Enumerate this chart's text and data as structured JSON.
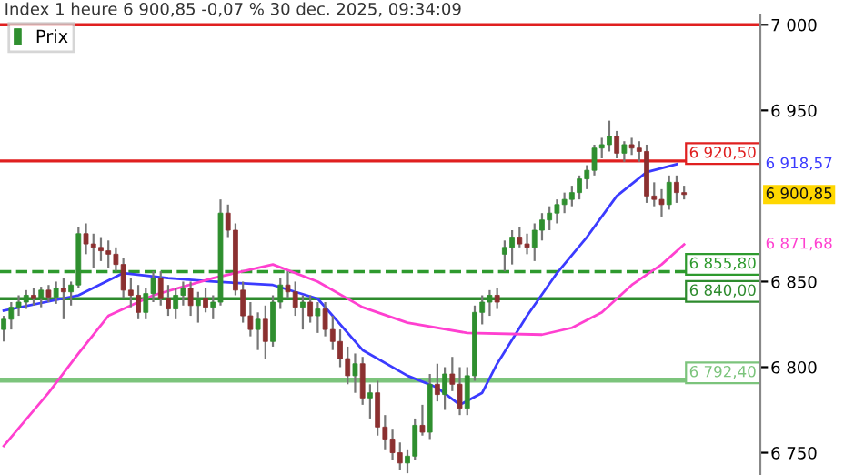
{
  "chart_data": {
    "type": "candlestick",
    "title": "Index 1 heure 6 900,85 -0,07 % 30 dec. 2025, 09:34:09",
    "categories": [
      null,
      null,
      null,
      null,
      null,
      null,
      null,
      null,
      null,
      null,
      null,
      null,
      null,
      null,
      null,
      null,
      null,
      null,
      null,
      null,
      null,
      null,
      null,
      null,
      null,
      null,
      null,
      null,
      null,
      null,
      null,
      null,
      null,
      null,
      null,
      null,
      null,
      null,
      null,
      null,
      null,
      null,
      null,
      null,
      null,
      null,
      null,
      null,
      null,
      null,
      null,
      null,
      null,
      null,
      null,
      null,
      null,
      null,
      null,
      null,
      null,
      null,
      null,
      null,
      null,
      null,
      null,
      null,
      null,
      null,
      null,
      null,
      null,
      null,
      null,
      null,
      null,
      null,
      null,
      null,
      null,
      null,
      null,
      null,
      null,
      null,
      null,
      null,
      null,
      null,
      null,
      null
    ],
    "grid": false,
    "ylim": [
      6737,
      7006
    ],
    "yticks": [
      {
        "value": 6750,
        "label": "6 750"
      },
      {
        "value": 6800,
        "label": "6 800"
      },
      {
        "value": 6850,
        "label": "6 850"
      },
      {
        "value": 6950,
        "label": "6 950"
      },
      {
        "value": 7000,
        "label": "7 000"
      }
    ],
    "legend": "top left",
    "series": [
      {
        "type": "candlestick",
        "name": "Prix",
        "color": "#2f8f2f",
        "ohlc": [
          [
            6822,
            6830,
            6815,
            6828
          ],
          [
            6828,
            6838,
            6822,
            6835
          ],
          [
            6835,
            6842,
            6830,
            6838
          ],
          [
            6838,
            6845,
            6834,
            6842
          ],
          [
            6842,
            6846,
            6836,
            6840
          ],
          [
            6840,
            6847,
            6835,
            6845
          ],
          [
            6845,
            6848,
            6838,
            6841
          ],
          [
            6841,
            6850,
            6837,
            6846
          ],
          [
            6846,
            6852,
            6828,
            6844
          ],
          [
            6844,
            6850,
            6836,
            6848
          ],
          [
            6848,
            6882,
            6846,
            6878
          ],
          [
            6878,
            6884,
            6866,
            6872
          ],
          [
            6872,
            6878,
            6858,
            6870
          ],
          [
            6870,
            6876,
            6862,
            6868
          ],
          [
            6868,
            6874,
            6858,
            6866
          ],
          [
            6866,
            6870,
            6856,
            6860
          ],
          [
            6860,
            6864,
            6840,
            6845
          ],
          [
            6845,
            6852,
            6835,
            6842
          ],
          [
            6842,
            6848,
            6828,
            6832
          ],
          [
            6832,
            6846,
            6828,
            6843
          ],
          [
            6843,
            6856,
            6838,
            6852
          ],
          [
            6852,
            6856,
            6836,
            6840
          ],
          [
            6840,
            6848,
            6830,
            6834
          ],
          [
            6834,
            6846,
            6828,
            6842
          ],
          [
            6842,
            6850,
            6836,
            6846
          ],
          [
            6846,
            6850,
            6830,
            6836
          ],
          [
            6836,
            6844,
            6826,
            6840
          ],
          [
            6840,
            6846,
            6832,
            6835
          ],
          [
            6835,
            6842,
            6828,
            6838
          ],
          [
            6838,
            6898,
            6836,
            6890
          ],
          [
            6890,
            6895,
            6876,
            6880
          ],
          [
            6880,
            6884,
            6842,
            6845
          ],
          [
            6845,
            6850,
            6826,
            6830
          ],
          [
            6830,
            6838,
            6818,
            6822
          ],
          [
            6822,
            6832,
            6810,
            6828
          ],
          [
            6828,
            6836,
            6805,
            6815
          ],
          [
            6815,
            6842,
            6812,
            6838
          ],
          [
            6838,
            6852,
            6834,
            6848
          ],
          [
            6848,
            6856,
            6840,
            6844
          ],
          [
            6844,
            6850,
            6830,
            6835
          ],
          [
            6835,
            6842,
            6822,
            6838
          ],
          [
            6838,
            6842,
            6826,
            6830
          ],
          [
            6830,
            6838,
            6820,
            6834
          ],
          [
            6834,
            6838,
            6818,
            6822
          ],
          [
            6822,
            6830,
            6810,
            6815
          ],
          [
            6815,
            6822,
            6800,
            6805
          ],
          [
            6805,
            6812,
            6790,
            6795
          ],
          [
            6795,
            6808,
            6785,
            6802
          ],
          [
            6802,
            6806,
            6778,
            6782
          ],
          [
            6782,
            6790,
            6770,
            6785
          ],
          [
            6785,
            6792,
            6760,
            6765
          ],
          [
            6765,
            6772,
            6752,
            6758
          ],
          [
            6758,
            6764,
            6746,
            6750
          ],
          [
            6750,
            6756,
            6740,
            6744
          ],
          [
            6744,
            6752,
            6738,
            6748
          ],
          [
            6748,
            6770,
            6746,
            6766
          ],
          [
            6766,
            6778,
            6760,
            6762
          ],
          [
            6762,
            6796,
            6758,
            6790
          ],
          [
            6790,
            6802,
            6780,
            6784
          ],
          [
            6784,
            6800,
            6775,
            6796
          ],
          [
            6796,
            6806,
            6786,
            6790
          ],
          [
            6790,
            6800,
            6772,
            6776
          ],
          [
            6776,
            6800,
            6772,
            6795
          ],
          [
            6795,
            6836,
            6792,
            6832
          ],
          [
            6832,
            6842,
            6825,
            6838
          ],
          [
            6838,
            6845,
            6830,
            6842
          ],
          [
            6842,
            6846,
            6834,
            6838
          ],
          [
            6866,
            6874,
            6856,
            6870
          ],
          [
            6870,
            6880,
            6860,
            6876
          ],
          [
            6876,
            6882,
            6870,
            6872
          ],
          [
            6872,
            6878,
            6866,
            6870
          ],
          [
            6870,
            6884,
            6862,
            6880
          ],
          [
            6880,
            6890,
            6874,
            6886
          ],
          [
            6886,
            6894,
            6880,
            6890
          ],
          [
            6890,
            6898,
            6884,
            6895
          ],
          [
            6895,
            6902,
            6890,
            6898
          ],
          [
            6898,
            6906,
            6894,
            6902
          ],
          [
            6902,
            6912,
            6898,
            6910
          ],
          [
            6910,
            6918,
            6904,
            6915
          ],
          [
            6915,
            6930,
            6912,
            6928
          ],
          [
            6928,
            6934,
            6922,
            6930
          ],
          [
            6930,
            6944,
            6926,
            6935
          ],
          [
            6935,
            6938,
            6922,
            6925
          ],
          [
            6925,
            6932,
            6920,
            6930
          ],
          [
            6930,
            6934,
            6924,
            6928
          ],
          [
            6928,
            6932,
            6920,
            6926
          ],
          [
            6926,
            6930,
            6896,
            6900
          ],
          [
            6900,
            6908,
            6894,
            6898
          ],
          [
            6898,
            6904,
            6888,
            6895
          ],
          [
            6895,
            6912,
            6892,
            6908
          ],
          [
            6908,
            6912,
            6896,
            6902
          ],
          [
            6902,
            6906,
            6898,
            6900.85
          ]
        ],
        "colors": [
          "#2f8f2f",
          "#2f8f2f",
          "#2f8f2f",
          "#2f8f2f",
          "#8b3030",
          "#2f8f2f",
          "#8b3030",
          "#2f8f2f",
          "#8b3030",
          "#2f8f2f",
          "#2f8f2f",
          "#8b3030",
          "#8b3030",
          "#8b3030",
          "#8b3030",
          "#8b3030",
          "#8b3030",
          "#8b3030",
          "#8b3030",
          "#2f8f2f",
          "#2f8f2f",
          "#8b3030",
          "#8b3030",
          "#2f8f2f",
          "#2f8f2f",
          "#8b3030",
          "#2f8f2f",
          "#8b3030",
          "#2f8f2f",
          "#2f8f2f",
          "#8b3030",
          "#8b3030",
          "#8b3030",
          "#8b3030",
          "#2f8f2f",
          "#8b3030",
          "#2f8f2f",
          "#2f8f2f",
          "#8b3030",
          "#8b3030",
          "#2f8f2f",
          "#8b3030",
          "#2f8f2f",
          "#8b3030",
          "#8b3030",
          "#8b3030",
          "#8b3030",
          "#2f8f2f",
          "#8b3030",
          "#2f8f2f",
          "#8b3030",
          "#8b3030",
          "#8b3030",
          "#8b3030",
          "#2f8f2f",
          "#2f8f2f",
          "#8b3030",
          "#2f8f2f",
          "#8b3030",
          "#2f8f2f",
          "#8b3030",
          "#8b3030",
          "#2f8f2f",
          "#2f8f2f",
          "#2f8f2f",
          "#2f8f2f",
          "#8b3030",
          "#2f8f2f",
          "#2f8f2f",
          "#8b3030",
          "#8b3030",
          "#2f8f2f",
          "#2f8f2f",
          "#2f8f2f",
          "#2f8f2f",
          "#2f8f2f",
          "#2f8f2f",
          "#2f8f2f",
          "#2f8f2f",
          "#2f8f2f",
          "#2f8f2f",
          "#2f8f2f",
          "#8b3030",
          "#2f8f2f",
          "#8b3030",
          "#8b3030",
          "#8b3030",
          "#8b3030",
          "#8b3030",
          "#2f8f2f",
          "#8b3030",
          "#8b3030"
        ]
      },
      {
        "type": "line",
        "color": "#3b3bff",
        "values": [
          6833,
          null,
          null,
          null,
          null,
          null,
          null,
          null,
          null,
          null,
          6842,
          null,
          null,
          null,
          null,
          null,
          6855,
          null,
          null,
          null,
          null,
          null,
          6852,
          null,
          null,
          null,
          null,
          null,
          6850,
          null,
          null,
          null,
          null,
          null,
          null,
          null,
          6848,
          null,
          null,
          null,
          null,
          null,
          6840,
          null,
          null,
          null,
          null,
          null,
          6810,
          null,
          null,
          null,
          null,
          null,
          6795,
          null,
          null,
          null,
          6788,
          null,
          null,
          6778,
          null,
          null,
          6785,
          null,
          6802,
          null,
          null,
          null,
          6830,
          null,
          null,
          null,
          6855,
          null,
          null,
          null,
          6876,
          null,
          null,
          null,
          6900,
          null,
          null,
          null,
          6914,
          null,
          null,
          null,
          6918.57,
          null
        ]
      },
      {
        "type": "line",
        "color": "#ff40d0",
        "values": [
          6754,
          null,
          null,
          null,
          null,
          null,
          6785,
          null,
          null,
          null,
          6808,
          null,
          null,
          null,
          6830,
          null,
          null,
          null,
          null,
          null,
          6842,
          null,
          null,
          null,
          null,
          null,
          null,
          null,
          6852,
          null,
          null,
          null,
          null,
          null,
          null,
          null,
          6860,
          null,
          null,
          null,
          null,
          null,
          6850,
          null,
          null,
          null,
          null,
          null,
          6835,
          null,
          null,
          null,
          null,
          null,
          6826,
          null,
          null,
          null,
          null,
          null,
          null,
          null,
          6820,
          null,
          null,
          null,
          null,
          null,
          null,
          null,
          null,
          null,
          6819,
          null,
          null,
          null,
          6823,
          null,
          null,
          null,
          6832,
          null,
          null,
          null,
          6848,
          null,
          null,
          null,
          6860,
          null,
          null,
          6871.68
        ]
      }
    ],
    "ref_lines": [
      {
        "axis": "y",
        "value": 7000,
        "color": "#e02020",
        "line_style": "solid"
      },
      {
        "axis": "y",
        "value": 6920.5,
        "label": "6 920,50",
        "color": "#e02020",
        "line_style": "solid"
      },
      {
        "axis": "y",
        "value": 6855.8,
        "label": "6 855,80",
        "color": "#2e9a2e",
        "line_style": "dashed"
      },
      {
        "axis": "y",
        "value": 6840,
        "label": "6 840,00",
        "color": "#2e8b2e",
        "line_style": "solid"
      },
      {
        "axis": "y",
        "value": 6792.4,
        "label": "6 792,40",
        "color": "#7cc47c",
        "line_style": "solid"
      }
    ],
    "annotations": [
      "6 918,57",
      "6 900,85",
      "6 871,68"
    ]
  }
}
